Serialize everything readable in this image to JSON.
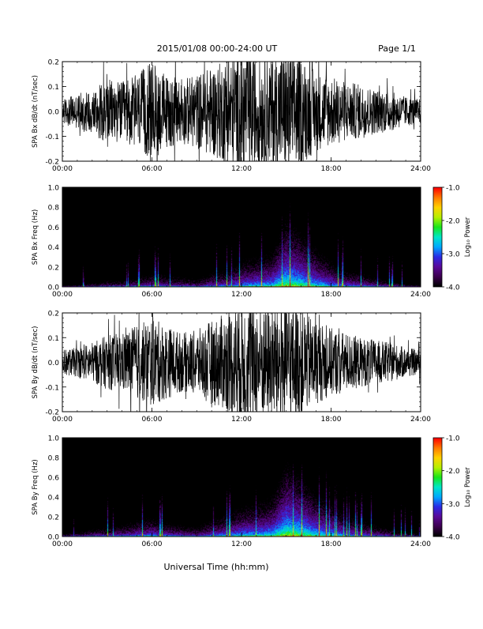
{
  "header": {
    "title": "2015/01/08  00:00-24:00 UT",
    "page": "Page 1/1"
  },
  "footer": {
    "xlabel": "Universal Time (hh:mm)"
  },
  "colorbar": {
    "label": "Log₁₀ Power",
    "ticks": [
      "-1.0",
      "-2.0",
      "-3.0",
      "-4.0"
    ],
    "tick_values": [
      -1.0,
      -2.0,
      -3.0,
      -4.0
    ],
    "range": [
      -4.0,
      -1.0
    ],
    "colors": [
      "#000000",
      "#3d0050",
      "#5a0a9a",
      "#2b2be6",
      "#00a8ff",
      "#00e6c8",
      "#18e61a",
      "#b6f000",
      "#ffd200",
      "#ff7a00",
      "#ff0000"
    ]
  },
  "chart_data": [
    {
      "type": "line",
      "panel": "bx-timeseries",
      "ylabel": "SPA Bx dB/dt (nT/sec)",
      "ylim": [
        -0.2,
        0.2
      ],
      "yticks": [
        "0.2",
        "0.1",
        "0.0",
        "-0.1",
        "-0.2"
      ],
      "ytick_values": [
        0.2,
        0.1,
        0.0,
        -0.1,
        -0.2
      ],
      "xlim": [
        "00:00",
        "24:00"
      ],
      "xticks": [
        "00:00",
        "06:00",
        "12:00",
        "18:00",
        "24:00"
      ],
      "x_hours": [
        0,
        1,
        2,
        3,
        4,
        5,
        6,
        7,
        8,
        9,
        10,
        11,
        12,
        13,
        14,
        15,
        16,
        17,
        18,
        19,
        20,
        21,
        22,
        23,
        24
      ],
      "amplitude_envelope": [
        0.05,
        0.07,
        0.09,
        0.13,
        0.12,
        0.15,
        0.2,
        0.15,
        0.13,
        0.15,
        0.18,
        0.21,
        0.25,
        0.22,
        0.22,
        0.25,
        0.22,
        0.16,
        0.14,
        0.12,
        0.11,
        0.09,
        0.08,
        0.06,
        0.05
      ],
      "color": "#000000"
    },
    {
      "type": "heatmap",
      "panel": "bx-spectrogram",
      "ylabel": "SPA Bx Freq (Hz)",
      "ylim": [
        0.0,
        1.0
      ],
      "yticks": [
        "1.0",
        "0.8",
        "0.6",
        "0.4",
        "0.2",
        "0.0"
      ],
      "ytick_values": [
        1.0,
        0.8,
        0.6,
        0.4,
        0.2,
        0.0
      ],
      "xlim": [
        "00:00",
        "24:00"
      ],
      "xticks": [
        "00:00",
        "06:00",
        "12:00",
        "18:00",
        "24:00"
      ],
      "x_hours": [
        0,
        1,
        2,
        3,
        4,
        5,
        6,
        7,
        8,
        9,
        10,
        11,
        12,
        13,
        14,
        15,
        16,
        17,
        18,
        19,
        20,
        21,
        22,
        23,
        24
      ],
      "low_freq_log_power": [
        -3.6,
        -3.4,
        -3.2,
        -3.0,
        -3.0,
        -2.8,
        -2.6,
        -2.7,
        -2.8,
        -2.9,
        -2.6,
        -2.5,
        -2.2,
        -2.1,
        -2.0,
        -1.4,
        -1.6,
        -1.9,
        -2.2,
        -2.5,
        -2.6,
        -2.8,
        -3.0,
        -3.3,
        -3.5
      ],
      "value_range": [
        -4.0,
        -1.0
      ]
    },
    {
      "type": "line",
      "panel": "by-timeseries",
      "ylabel": "SPA By dB/dt (nT/sec)",
      "ylim": [
        -0.2,
        0.2
      ],
      "yticks": [
        "0.2",
        "0.1",
        "0.0",
        "-0.1",
        "-0.2"
      ],
      "ytick_values": [
        0.2,
        0.1,
        0.0,
        -0.1,
        -0.2
      ],
      "xlim": [
        "00:00",
        "24:00"
      ],
      "xticks": [
        "00:00",
        "06:00",
        "12:00",
        "18:00",
        "24:00"
      ],
      "x_hours": [
        0,
        1,
        2,
        3,
        4,
        5,
        6,
        7,
        8,
        9,
        10,
        11,
        12,
        13,
        14,
        15,
        16,
        17,
        18,
        19,
        20,
        21,
        22,
        23,
        24
      ],
      "amplitude_envelope": [
        0.05,
        0.06,
        0.08,
        0.11,
        0.12,
        0.15,
        0.18,
        0.15,
        0.12,
        0.13,
        0.17,
        0.2,
        0.25,
        0.24,
        0.23,
        0.25,
        0.22,
        0.17,
        0.14,
        0.12,
        0.1,
        0.09,
        0.08,
        0.06,
        0.05
      ],
      "color": "#000000"
    },
    {
      "type": "heatmap",
      "panel": "by-spectrogram",
      "ylabel": "SPA By Freq (Hz)",
      "ylim": [
        0.0,
        1.0
      ],
      "yticks": [
        "1.0",
        "0.8",
        "0.6",
        "0.4",
        "0.2",
        "0.0"
      ],
      "ytick_values": [
        1.0,
        0.8,
        0.6,
        0.4,
        0.2,
        0.0
      ],
      "xlim": [
        "00:00",
        "24:00"
      ],
      "xticks": [
        "00:00",
        "06:00",
        "12:00",
        "18:00",
        "24:00"
      ],
      "x_hours": [
        0,
        1,
        2,
        3,
        4,
        5,
        6,
        7,
        8,
        9,
        10,
        11,
        12,
        13,
        14,
        15,
        16,
        17,
        18,
        19,
        20,
        21,
        22,
        23,
        24
      ],
      "low_freq_log_power": [
        -3.3,
        -3.1,
        -2.9,
        -2.8,
        -2.7,
        -2.5,
        -2.4,
        -2.6,
        -2.7,
        -2.8,
        -2.5,
        -2.3,
        -2.1,
        -2.0,
        -1.9,
        -1.3,
        -1.5,
        -1.8,
        -2.0,
        -2.3,
        -2.5,
        -2.7,
        -2.9,
        -3.1,
        -3.3
      ],
      "value_range": [
        -4.0,
        -1.0
      ]
    }
  ]
}
